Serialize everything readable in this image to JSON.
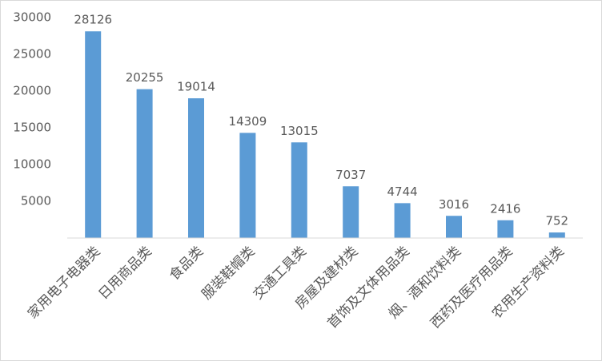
{
  "chart_data": {
    "type": "bar",
    "categories": [
      "家用电子电器类",
      "日用商品类",
      "食品类",
      "服装鞋帽类",
      "交通工具类",
      "房屋及建材类",
      "首饰及文体用品类",
      "烟、酒和饮料类",
      "西药及医疗用品类",
      "农用生产资料类"
    ],
    "values": [
      28126,
      20255,
      19014,
      14309,
      13015,
      7037,
      4744,
      3016,
      2416,
      752
    ],
    "color": "#5b9bd5",
    "ylim": [
      0,
      30000
    ],
    "yticks": [
      5000,
      10000,
      15000,
      20000,
      25000,
      30000
    ],
    "grid": false
  }
}
